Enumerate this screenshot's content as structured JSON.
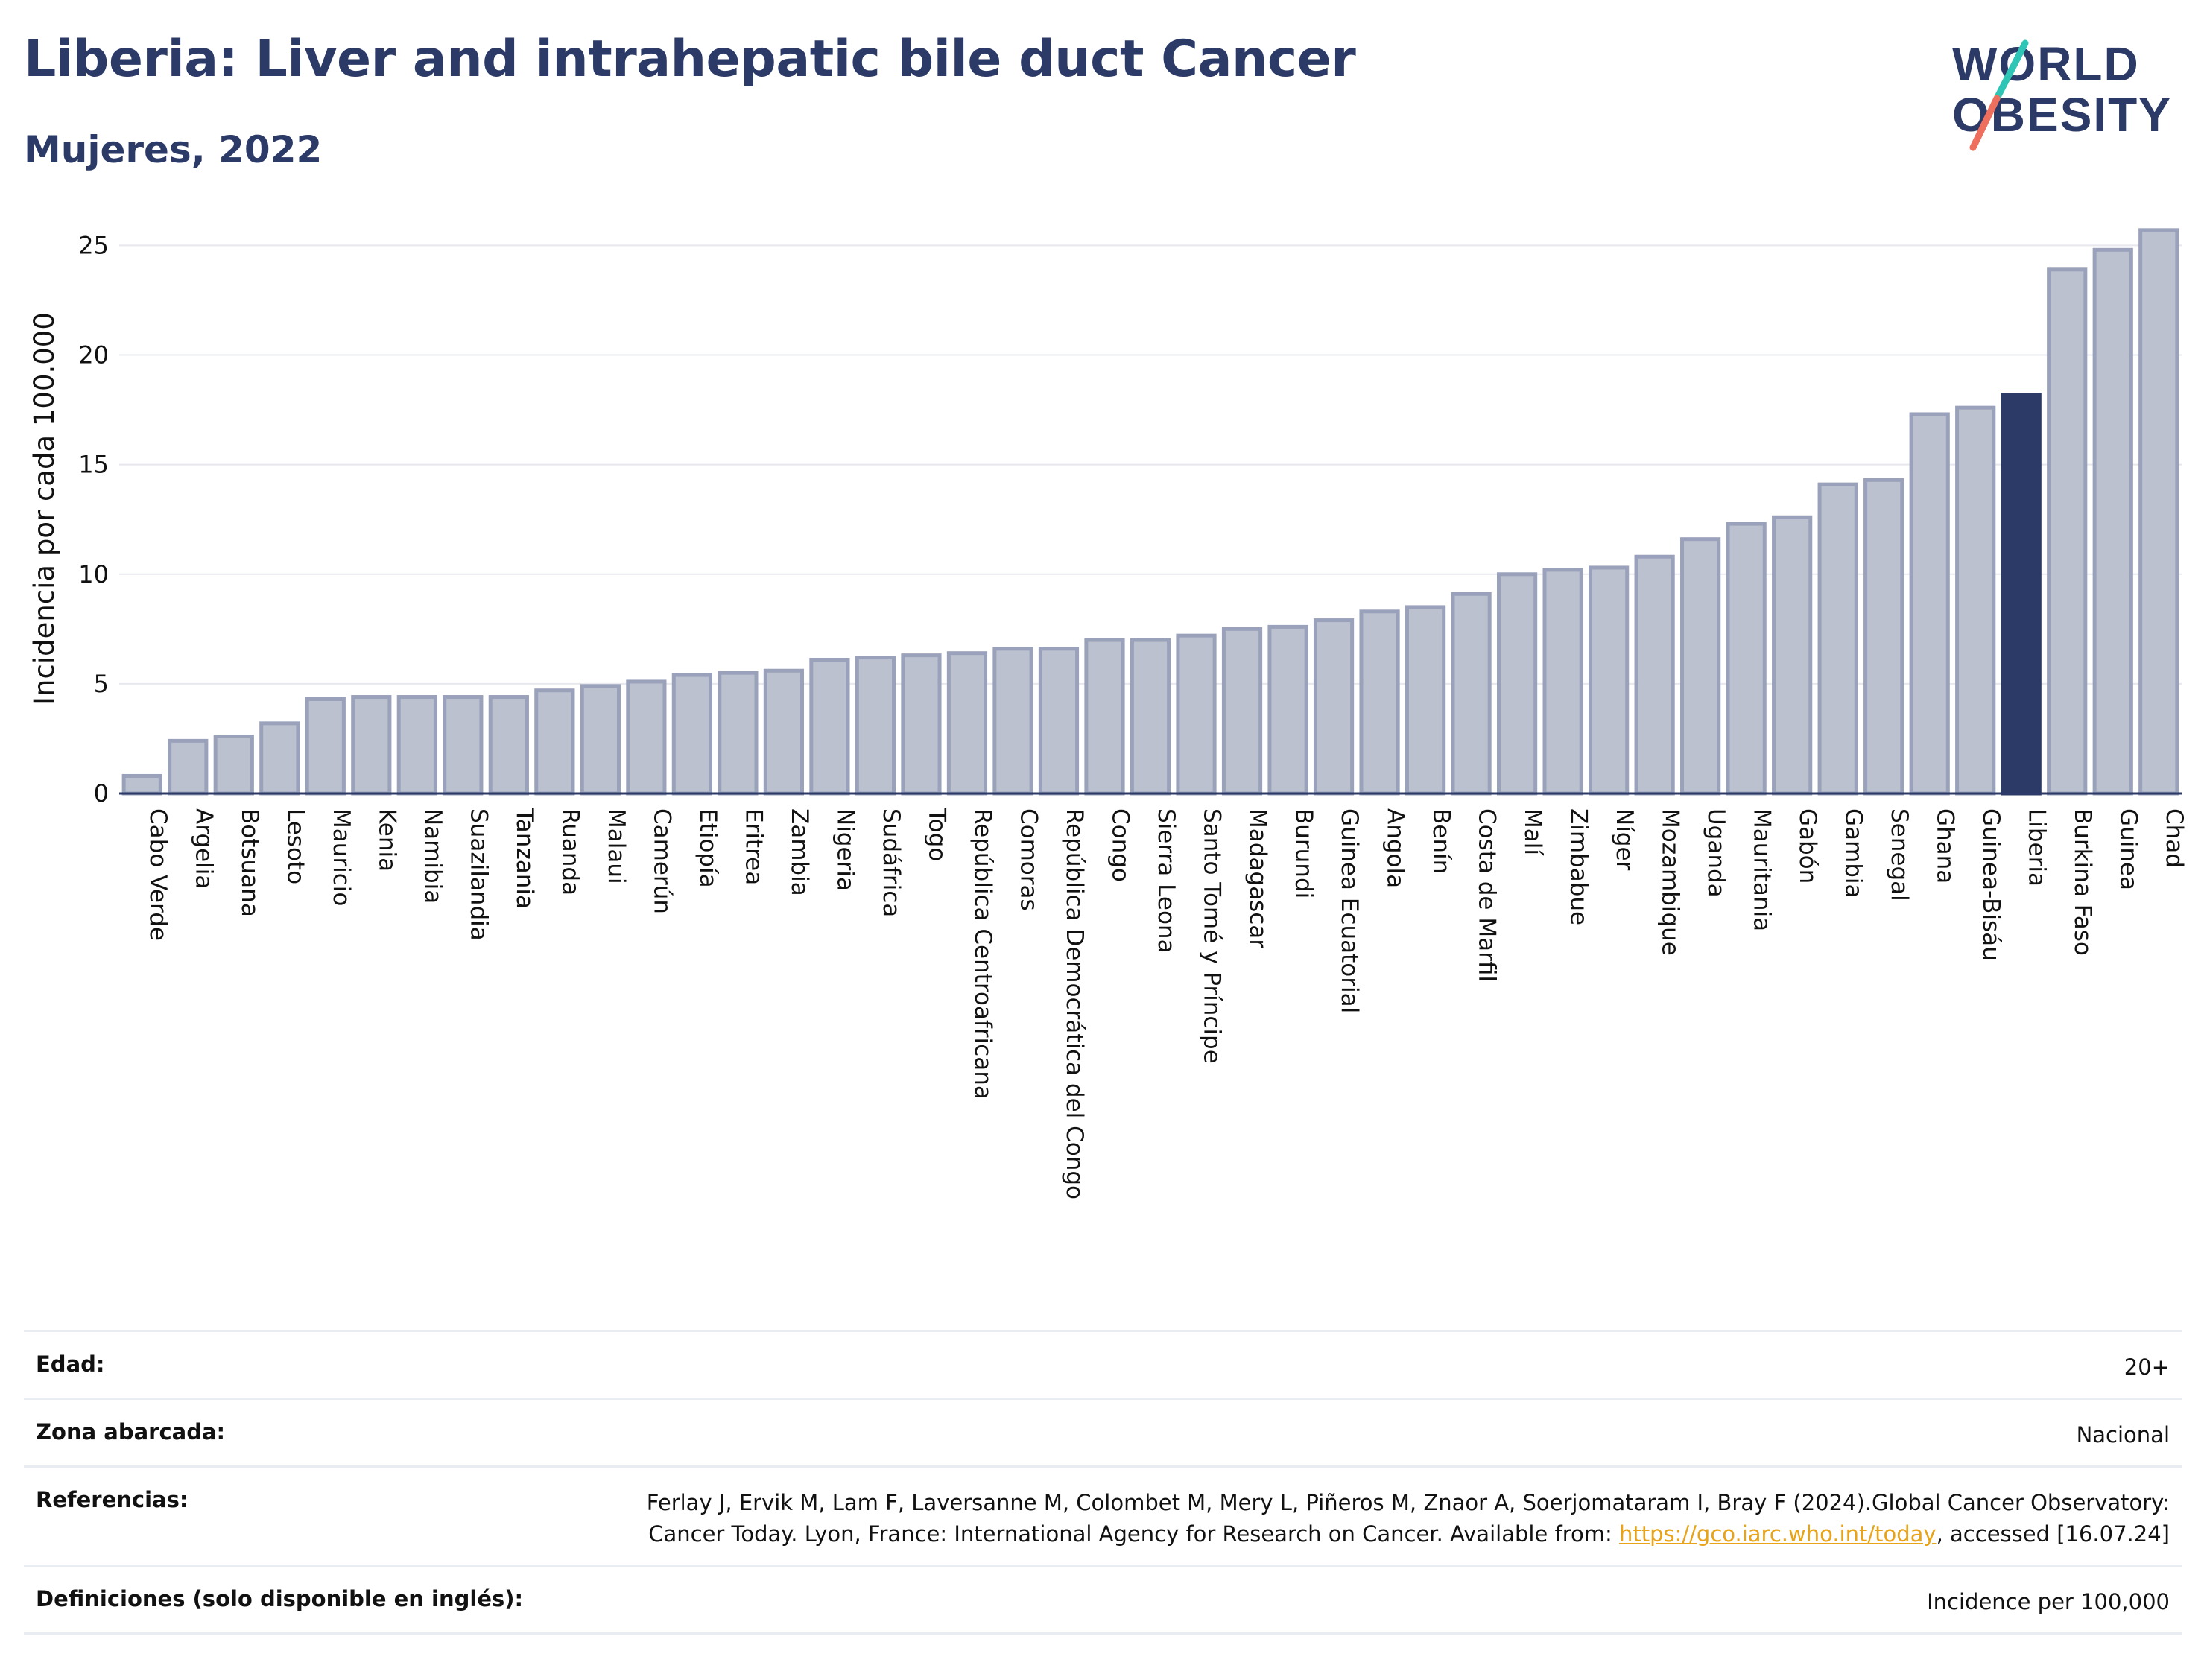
{
  "header": {
    "title": "Liberia: Liver and intrahepatic bile duct Cancer",
    "subtitle": "Mujeres, 2022",
    "logo": {
      "line1": "WORLD",
      "line2": "OBESITY"
    }
  },
  "colors": {
    "title": "#2b3a67",
    "bar": "#bcc1cf",
    "bar_border": "#9aa1ba",
    "highlight": "#2b3a67",
    "logo_teal": "#2ec4b6",
    "logo_coral": "#ef6f5e"
  },
  "chart_data": {
    "type": "bar",
    "title": "Liberia: Liver and intrahepatic bile duct Cancer",
    "subtitle": "Mujeres, 2022",
    "xlabel": "",
    "ylabel": "Incidencia por cada 100.000",
    "ylim": [
      0,
      26
    ],
    "yticks": [
      0,
      5,
      10,
      15,
      20,
      25
    ],
    "grid": true,
    "legend": "none",
    "highlight": "Liberia",
    "categories": [
      "Cabo Verde",
      "Argelia",
      "Botsuana",
      "Lesoto",
      "Mauricio",
      "Kenia",
      "Namibia",
      "Suazilandia",
      "Tanzania",
      "Ruanda",
      "Malaui",
      "Camerún",
      "Etiopía",
      "Eritrea",
      "Zambia",
      "Nigeria",
      "Sudáfrica",
      "Togo",
      "República Centroafricana",
      "Comoras",
      "República Democrática del Congo",
      "Congo",
      "Sierra Leona",
      "Santo Tomé y Príncipe",
      "Madagascar",
      "Burundi",
      "Guinea Ecuatorial",
      "Angola",
      "Benín",
      "Costa de Marfil",
      "Malí",
      "Zimbabue",
      "Níger",
      "Mozambique",
      "Uganda",
      "Mauritania",
      "Gabón",
      "Gambia",
      "Senegal",
      "Ghana",
      "Guinea-Bisáu",
      "Liberia",
      "Burkina Faso",
      "Guinea",
      "Chad"
    ],
    "values": [
      0.8,
      2.4,
      2.6,
      3.2,
      4.3,
      4.4,
      4.4,
      4.4,
      4.4,
      4.7,
      4.9,
      5.1,
      5.4,
      5.5,
      5.6,
      6.1,
      6.2,
      6.3,
      6.4,
      6.6,
      6.6,
      7.0,
      7.0,
      7.2,
      7.5,
      7.6,
      7.9,
      8.3,
      8.5,
      9.1,
      10.0,
      10.2,
      10.3,
      10.8,
      11.6,
      12.3,
      12.6,
      14.1,
      14.3,
      17.3,
      17.6,
      18.2,
      23.9,
      24.8,
      25.7
    ]
  },
  "info": {
    "rows": [
      {
        "label": "Edad:",
        "value": "20+"
      },
      {
        "label": "Zona abarcada:",
        "value": "Nacional"
      },
      {
        "label": "Referencias:",
        "value_parts": {
          "before": "Ferlay J, Ervik M, Lam F, Laversanne M, Colombet M, Mery L, Piñeros M, Znaor A, Soerjomataram I, Bray F (2024).Global Cancer Observatory: Cancer Today. Lyon, France: International Agency for Research on Cancer. Available from: ",
          "link": "https://gco.iarc.who.int/today",
          "after": ", accessed [16.07.24]"
        }
      },
      {
        "label": "Definiciones (solo disponible en inglés):",
        "value": "Incidence per 100,000"
      }
    ]
  }
}
